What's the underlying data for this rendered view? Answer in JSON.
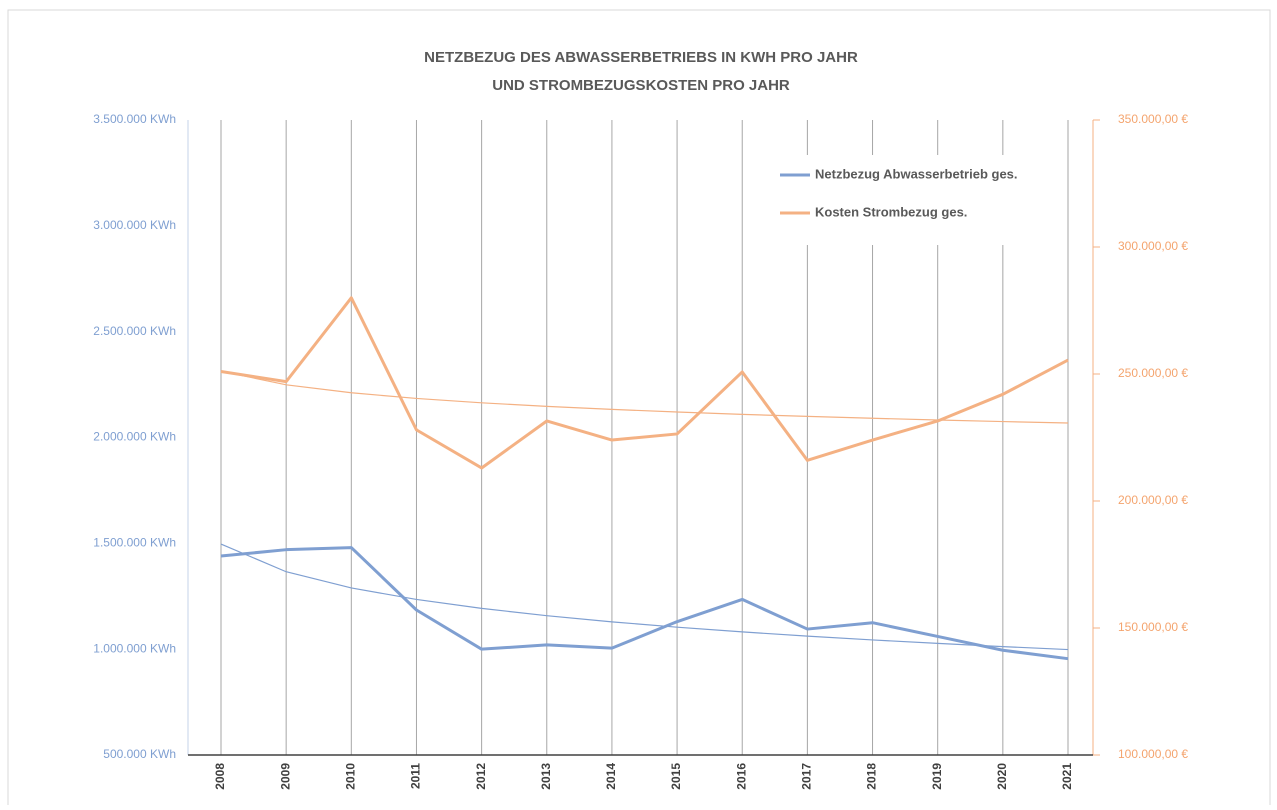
{
  "chart_data": {
    "type": "line",
    "title": [
      "NETZBEZUG DES ABWASSERBETRIEBS IN KWH PRO JAHR",
      "UND STROMBEZUGSKOSTEN PRO JAHR"
    ],
    "categories": [
      "2008",
      "2009",
      "2010",
      "2011",
      "2012",
      "2013",
      "2014",
      "2015",
      "2016",
      "2017",
      "2018",
      "2019",
      "2020",
      "2021"
    ],
    "series": [
      {
        "name": "Netzbezug Abwasserbetrieb ges.",
        "color": "#7f9fd1",
        "axis": "y",
        "trendline": "log",
        "values": [
          1440000,
          1470000,
          1480000,
          1185000,
          1000000,
          1020000,
          1005000,
          1130000,
          1235000,
          1095000,
          1125000,
          1060000,
          995000,
          955000
        ]
      },
      {
        "name": "Kosten Strombezug ges.",
        "color": "#f4b183",
        "axis": "y2",
        "trendline": "log",
        "values": [
          251000,
          247000,
          280000,
          228000,
          213000,
          231500,
          224000,
          226400,
          250800,
          216000,
          224000,
          231500,
          242000,
          255500
        ]
      }
    ],
    "ylim": [
      500000,
      3500000
    ],
    "yticks": [
      {
        "value": 500000,
        "label": "500.000 KWh"
      },
      {
        "value": 1000000,
        "label": "1.000.000 KWh"
      },
      {
        "value": 1500000,
        "label": "1.500.000 KWh"
      },
      {
        "value": 2000000,
        "label": "2.000.000 KWh"
      },
      {
        "value": 2500000,
        "label": "2.500.000 KWh"
      },
      {
        "value": 3000000,
        "label": "3.000.000 KWh"
      },
      {
        "value": 3500000,
        "label": "3.500.000 KWh"
      }
    ],
    "y2lim": [
      100000,
      350000
    ],
    "y2ticks": [
      {
        "value": 100000,
        "label": "100.000,00 €"
      },
      {
        "value": 150000,
        "label": "150.000,00 €"
      },
      {
        "value": 200000,
        "label": "200.000,00 €"
      },
      {
        "value": 250000,
        "label": "250.000,00 €"
      },
      {
        "value": 300000,
        "label": "300.000,00 €"
      },
      {
        "value": 350000,
        "label": "350.000,00 €"
      }
    ],
    "grid": "x",
    "legend": "top-right"
  }
}
